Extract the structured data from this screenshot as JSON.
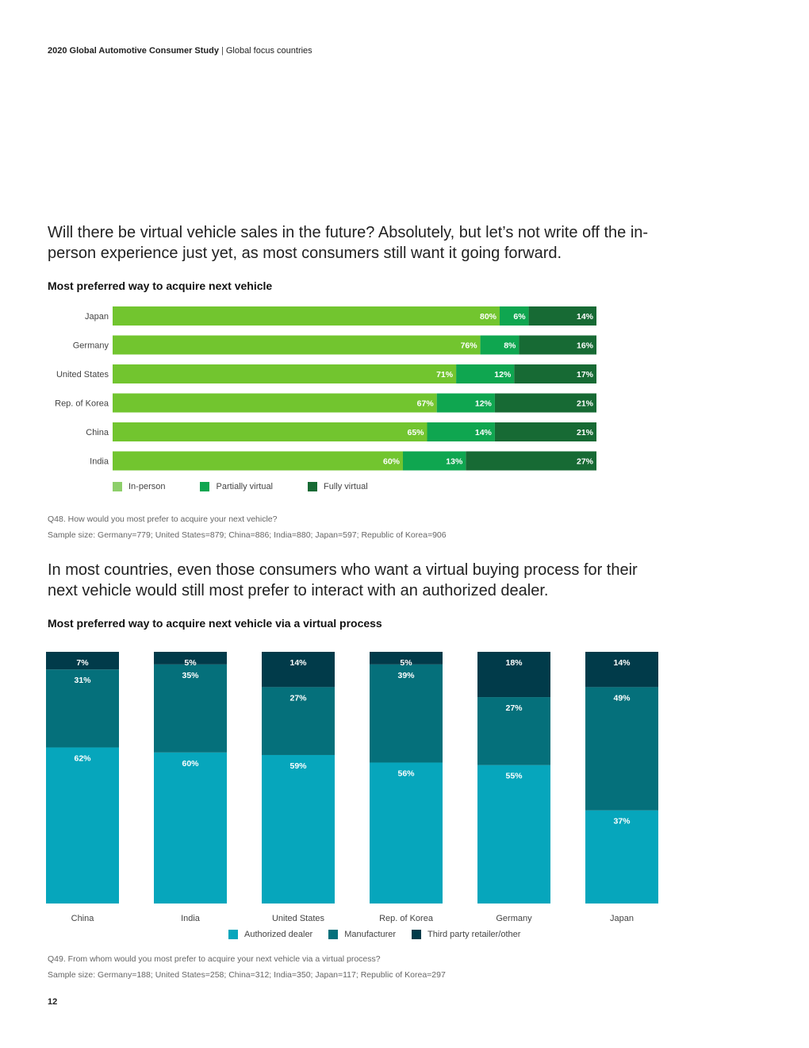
{
  "header": {
    "study": "2020 Global Automotive Consumer Study",
    "separator": "|",
    "section": "Global focus countries"
  },
  "intro1": "Will there be virtual vehicle sales in the future? Absolutely, but let’s not write off the in-person experience just yet, as most consumers still want it going forward.",
  "intro2": "In most countries, even those consumers who want a virtual buying process for their next vehicle would still most prefer to interact with an authorized dealer.",
  "note1": {
    "question": "Q48. How would you most prefer to acquire your next vehicle?",
    "sample": "Sample size: Germany=779; United States=879; China=886; India=880; Japan=597; Republic of Korea=906"
  },
  "note2": {
    "question": "Q49. From whom would you most prefer to acquire your next vehicle via a virtual process?",
    "sample": "Sample size: Germany=188; United States=258; China=312; India=350; Japan=117; Republic of Korea=297"
  },
  "page_number": "12",
  "legend1": [
    {
      "label": "In-person",
      "color": "#8dcf6a"
    },
    {
      "label": "Partially virtual",
      "color": "#0fa650"
    },
    {
      "label": "Fully virtual",
      "color": "#176a34"
    }
  ],
  "legend2": [
    {
      "label": "Authorized dealer",
      "color": "#06a6bc"
    },
    {
      "label": "Manufacturer",
      "color": "#05707b"
    },
    {
      "label": "Third party retailer/other",
      "color": "#013b4a"
    }
  ],
  "chart_data": [
    {
      "type": "bar",
      "orientation": "horizontal",
      "stacked": true,
      "title": "Most preferred way to acquire next vehicle",
      "categories": [
        "Japan",
        "Germany",
        "United States",
        "Rep. of Korea",
        "China",
        "India"
      ],
      "series": [
        {
          "name": "In-person",
          "color": "#72c52f",
          "values": [
            80,
            76,
            71,
            67,
            65,
            60
          ]
        },
        {
          "name": "Partially virtual",
          "color": "#0fa650",
          "values": [
            6,
            8,
            12,
            12,
            14,
            13
          ]
        },
        {
          "name": "Fully virtual",
          "color": "#176a34",
          "values": [
            14,
            16,
            17,
            21,
            21,
            27
          ]
        }
      ],
      "value_suffix": "%",
      "legend": "bottom-left"
    },
    {
      "type": "bar",
      "orientation": "vertical",
      "stacked": true,
      "title": "Most preferred way to acquire next vehicle via a virtual process",
      "categories": [
        "China",
        "India",
        "United States",
        "Rep. of Korea",
        "Germany",
        "Japan"
      ],
      "series": [
        {
          "name": "Authorized dealer",
          "color": "#06a6bc",
          "values": [
            62,
            60,
            59,
            56,
            55,
            37
          ]
        },
        {
          "name": "Manufacturer",
          "color": "#05707b",
          "values": [
            31,
            35,
            27,
            39,
            27,
            49
          ]
        },
        {
          "name": "Third party retailer/other",
          "color": "#013b4a",
          "values": [
            7,
            5,
            14,
            5,
            18,
            14
          ]
        }
      ],
      "value_suffix": "%",
      "legend": "bottom-center"
    }
  ]
}
